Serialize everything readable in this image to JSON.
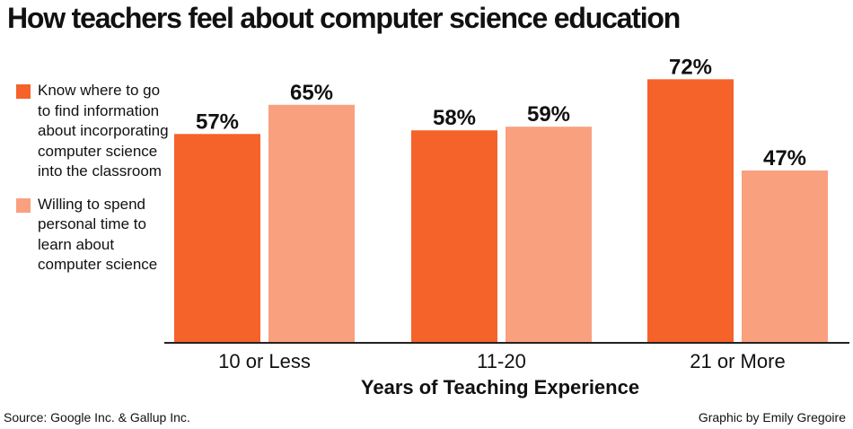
{
  "title": "How teachers feel about computer science education",
  "source": "Source: Google Inc. & Gallup Inc.",
  "credit": "Graphic by Emily Gregoire",
  "colors": {
    "series1": "#f5622a",
    "series2": "#f9a07f",
    "axis": "#222222"
  },
  "chart_data": {
    "type": "bar",
    "xlabel": "Years of Teaching Experience",
    "ylabel": "",
    "categories": [
      "10 or Less",
      "11-20",
      "21 or More"
    ],
    "series": [
      {
        "name": "Know where to go to find information about incorporating computer science into the classroom",
        "values": [
          57,
          58,
          72
        ],
        "labels": [
          "57%",
          "58%",
          "72%"
        ]
      },
      {
        "name": "Willing to spend personal time to learn about computer science",
        "values": [
          65,
          59,
          47
        ],
        "labels": [
          "65%",
          "59%",
          "47%"
        ]
      }
    ],
    "ylim": [
      0,
      100
    ],
    "grid": false,
    "legend": "left"
  }
}
